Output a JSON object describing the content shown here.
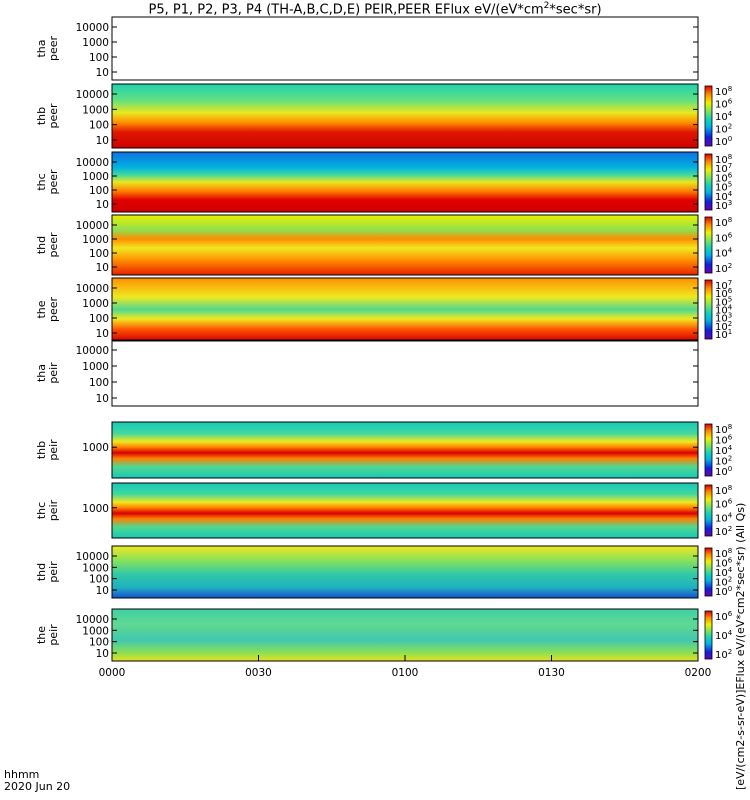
{
  "title": {
    "prefix": "P5, P1, P2, P3, P4 (TH-A,B,C,D,E) PEIR,PEER EFlux eV/(eV*cm",
    "sup": "2",
    "suffix": "*sec*sr)"
  },
  "footer": {
    "time_label": "hhmm",
    "date_label": "2020 Jun 20"
  },
  "colors": {
    "low": "#7a00c8",
    "mid": "#18d2b4",
    "high": "#d40000",
    "fill": "#000000"
  },
  "chart_data": {
    "type": "heatmap",
    "x_axis": {
      "range": [
        "0000",
        "0200"
      ],
      "tick_labels": [
        "0000",
        "0030",
        "0100",
        "0130",
        "0200"
      ]
    },
    "right_label_text": "[eV/(cm2-s-sr-eV)]EFlux eV/(eV*cm2*sec*sr) (All Qs)",
    "panels": [
      {
        "name": "tha peer",
        "probe": "tha",
        "species": "peer",
        "scale": "log",
        "y_ticks": [
          "10000",
          "1000",
          "100",
          "10"
        ],
        "has_data": false,
        "colorbar": false
      },
      {
        "name": "thb peer",
        "probe": "thb",
        "species": "peer",
        "scale": "log",
        "y_ticks": [
          "10000",
          "1000",
          "100",
          "10"
        ],
        "has_data": true,
        "colorbar": true,
        "colorbar_ticks": [
          "10^8",
          "10^6",
          "10^4",
          "10^2",
          "10^0"
        ],
        "colorbar_exp": [
          "8",
          "6",
          "4",
          "2",
          "0"
        ]
      },
      {
        "name": "thc peer",
        "probe": "thc",
        "species": "peer",
        "scale": "log",
        "y_ticks": [
          "10000",
          "1000",
          "100",
          "10"
        ],
        "has_data": true,
        "colorbar": true,
        "colorbar_ticks": [
          "10^8",
          "10^7",
          "10^6",
          "10^5",
          "10^4",
          "10^3"
        ],
        "colorbar_exp": [
          "8",
          "7",
          "6",
          "5",
          "4",
          "3"
        ]
      },
      {
        "name": "thd peer",
        "probe": "thd",
        "species": "peer",
        "scale": "log",
        "y_ticks": [
          "10000",
          "1000",
          "100",
          "10"
        ],
        "has_data": true,
        "colorbar": true,
        "colorbar_ticks": [
          "10^8",
          "10^6",
          "10^4",
          "10^2"
        ],
        "colorbar_exp": [
          "8",
          "6",
          "4",
          "2"
        ]
      },
      {
        "name": "the peer",
        "probe": "the",
        "species": "peer",
        "scale": "log",
        "y_ticks": [
          "10000",
          "1000",
          "100",
          "10"
        ],
        "has_data": true,
        "colorbar": true,
        "colorbar_ticks": [
          "10^7",
          "10^6",
          "10^5",
          "10^4",
          "10^3",
          "10^2",
          "10^1"
        ],
        "colorbar_exp": [
          "7",
          "6",
          "5",
          "4",
          "3",
          "2",
          "1"
        ]
      },
      {
        "name": "tha peir",
        "probe": "tha",
        "species": "peir",
        "scale": "log",
        "y_ticks": [
          "10000",
          "1000",
          "100",
          "10"
        ],
        "has_data": false,
        "colorbar": false
      },
      {
        "name": "thb peir",
        "probe": "thb",
        "species": "peir",
        "scale": "log",
        "y_ticks": [
          "1000"
        ],
        "has_data": true,
        "colorbar": true,
        "colorbar_ticks": [
          "10^8",
          "10^6",
          "10^4",
          "10^2",
          "10^0"
        ],
        "colorbar_exp": [
          "8",
          "6",
          "4",
          "2",
          "0"
        ]
      },
      {
        "name": "thc peir",
        "probe": "thc",
        "species": "peir",
        "scale": "log",
        "y_ticks": [
          "1000"
        ],
        "has_data": true,
        "colorbar": true,
        "colorbar_ticks": [
          "10^8",
          "10^6",
          "10^4",
          "10^2"
        ],
        "colorbar_exp": [
          "8",
          "6",
          "4",
          "2"
        ]
      },
      {
        "name": "thd peir",
        "probe": "thd",
        "species": "peir",
        "scale": "log",
        "y_ticks": [
          "10000",
          "1000",
          "100",
          "10"
        ],
        "has_data": true,
        "colorbar": true,
        "colorbar_ticks": [
          "10^8",
          "10^6",
          "10^4",
          "10^2",
          "10^0"
        ],
        "colorbar_exp": [
          "8",
          "6",
          "4",
          "2",
          "0"
        ]
      },
      {
        "name": "the peir",
        "probe": "the",
        "species": "peir",
        "scale": "log",
        "y_ticks": [
          "10000",
          "1000",
          "100",
          "10"
        ],
        "has_data": true,
        "colorbar": true,
        "colorbar_ticks": [
          "10^6",
          "10^4",
          "10^2"
        ],
        "colorbar_exp": [
          "6",
          "4",
          "2"
        ]
      }
    ]
  }
}
